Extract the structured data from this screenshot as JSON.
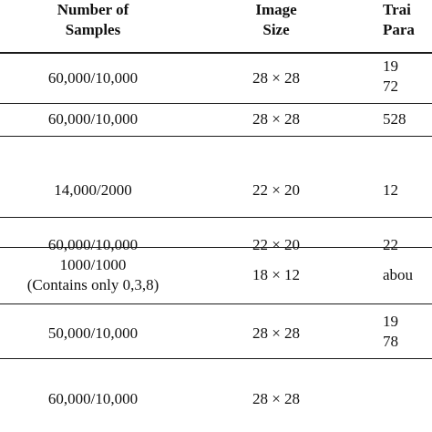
{
  "table": {
    "headers": {
      "samples": [
        "Number of",
        "Samples"
      ],
      "size": [
        "Image",
        "Size"
      ],
      "params": [
        "Trai",
        "Para"
      ]
    },
    "rows": [
      {
        "samples": "60,000/10,000",
        "size": "28 × 28",
        "params": [
          "19",
          "72"
        ]
      },
      {
        "samples": "60,000/10,000",
        "size": "28 × 28",
        "params": [
          "528"
        ]
      },
      {
        "samples": "14,000/2000",
        "size": "22 × 20",
        "params": [
          "12"
        ]
      },
      {
        "samples": "60,000/10,000",
        "size": "22 × 20",
        "params": [
          "22"
        ]
      },
      {
        "samples": [
          "1000/1000",
          "(Contains only 0,3,8)"
        ],
        "size": "18 × 12",
        "params": [
          "abou"
        ]
      },
      {
        "samples": "50,000/10,000",
        "size": "28 × 28",
        "params": [
          "19",
          "78"
        ]
      },
      {
        "samples": "60,000/10,000",
        "size": "28 × 28",
        "params": [
          ""
        ]
      }
    ]
  }
}
